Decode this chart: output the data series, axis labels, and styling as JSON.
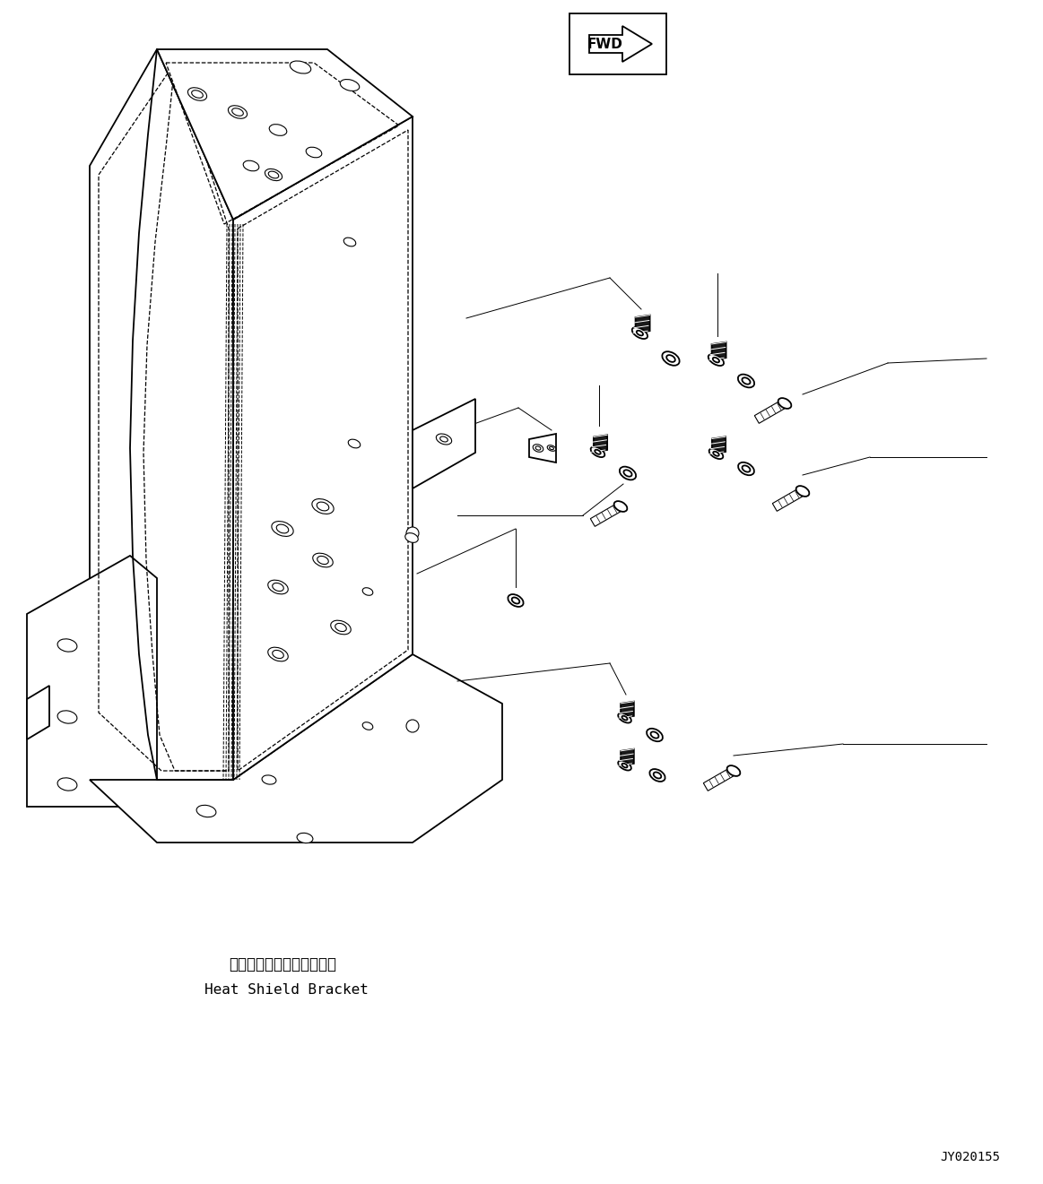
{
  "bg_color": "#ffffff",
  "line_color": "#000000",
  "fig_width": 11.63,
  "fig_height": 13.21,
  "dpi": 100,
  "label_japanese": "ヒートシールドブラケット",
  "label_english": "Heat Shield Bracket",
  "fwd_text": "FWD",
  "part_number": "JY020155",
  "lw_main": 1.3,
  "lw_dash": 0.9,
  "lw_thin": 0.8,
  "lw_leader": 0.7
}
